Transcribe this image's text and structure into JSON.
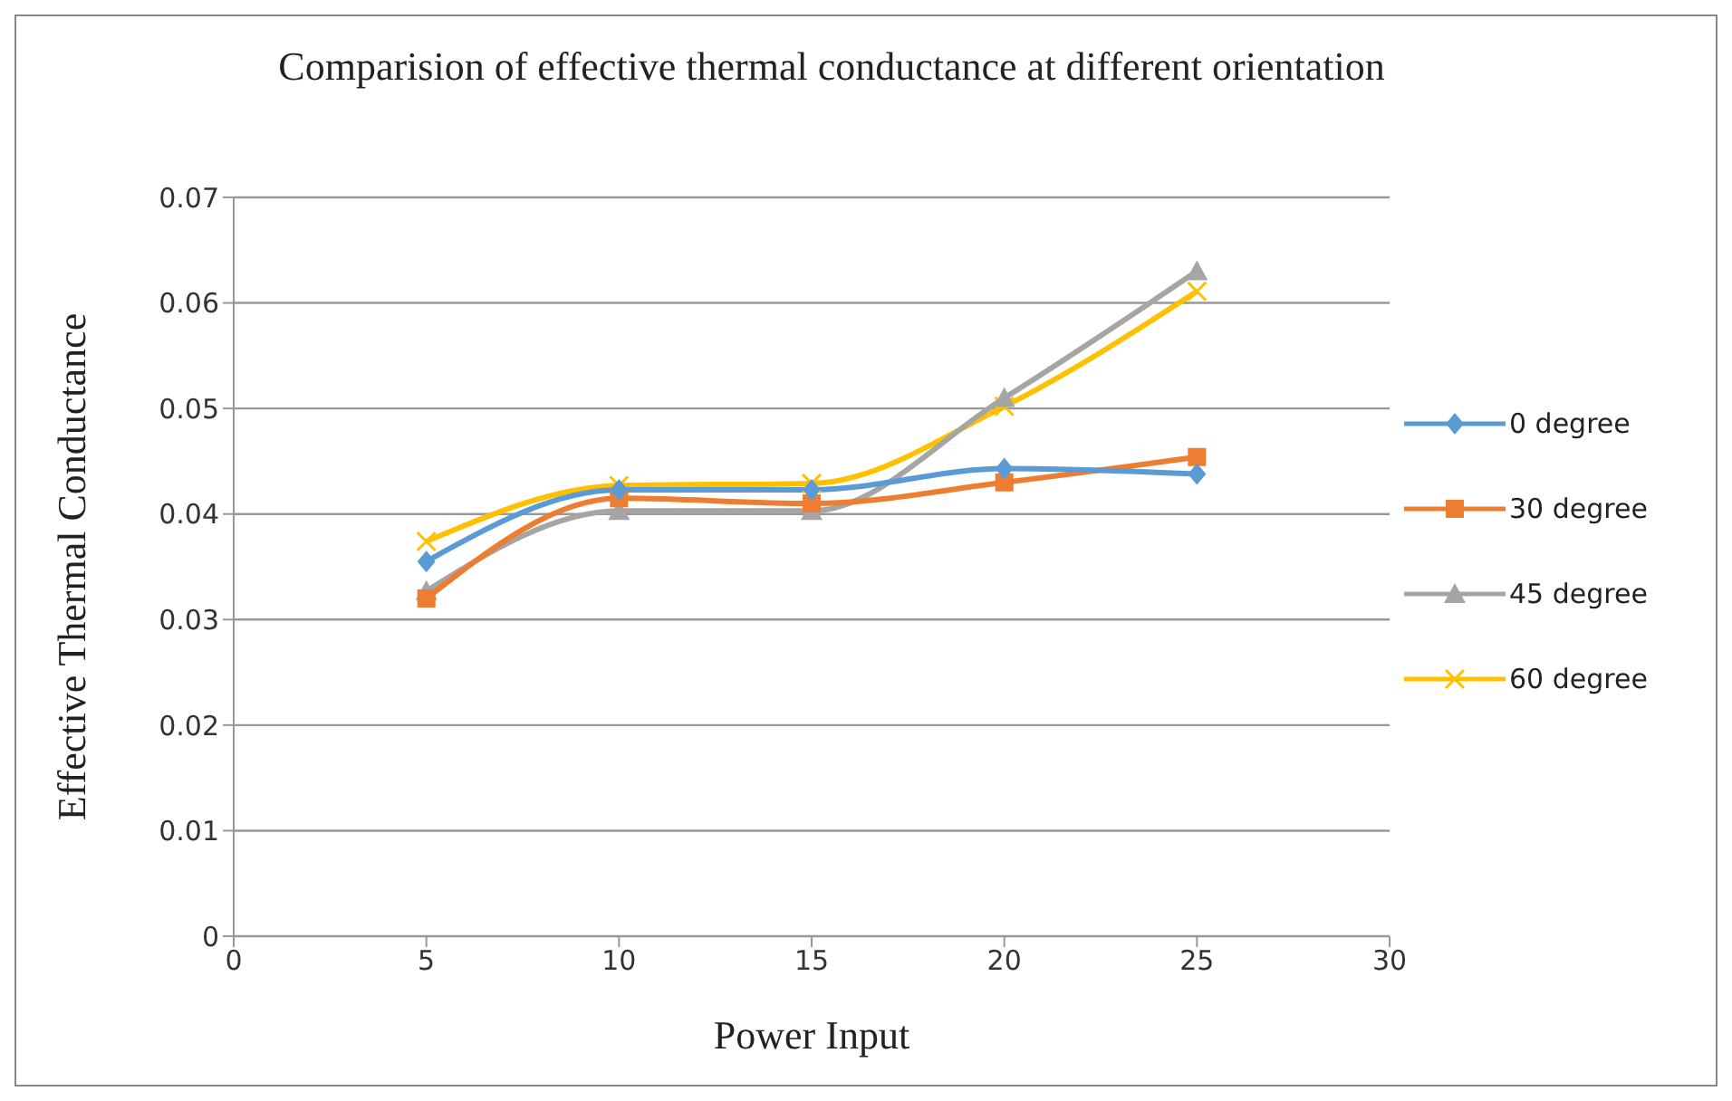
{
  "chart_data": {
    "type": "line",
    "title": "Comparision of effective thermal conductance at different orientation",
    "xlabel": "Power Input",
    "ylabel": "Effective Thermal Conductance",
    "x": [
      5,
      10,
      15,
      20,
      25
    ],
    "series": [
      {
        "name": "0 degree",
        "color": "#5b9bd5",
        "marker": "diamond",
        "values": [
          0.0355,
          0.0423,
          0.0423,
          0.0443,
          0.0438
        ]
      },
      {
        "name": "30 degree",
        "color": "#ed7d31",
        "marker": "square",
        "values": [
          0.032,
          0.0415,
          0.041,
          0.043,
          0.0454
        ]
      },
      {
        "name": "45 degree",
        "color": "#a5a5a5",
        "marker": "triangle",
        "values": [
          0.0327,
          0.0403,
          0.0403,
          0.051,
          0.063
        ]
      },
      {
        "name": "60 degree",
        "color": "#ffc000",
        "marker": "cross",
        "values": [
          0.0374,
          0.0427,
          0.0429,
          0.0502,
          0.0611
        ]
      }
    ],
    "xlim": [
      0,
      30
    ],
    "xticks": [
      0,
      5,
      10,
      15,
      20,
      25,
      30
    ],
    "ylim": [
      0,
      0.07
    ],
    "yticks": [
      0,
      0.01,
      0.02,
      0.03,
      0.04,
      0.05,
      0.06,
      0.07
    ],
    "grid": "y",
    "legend": "right"
  }
}
